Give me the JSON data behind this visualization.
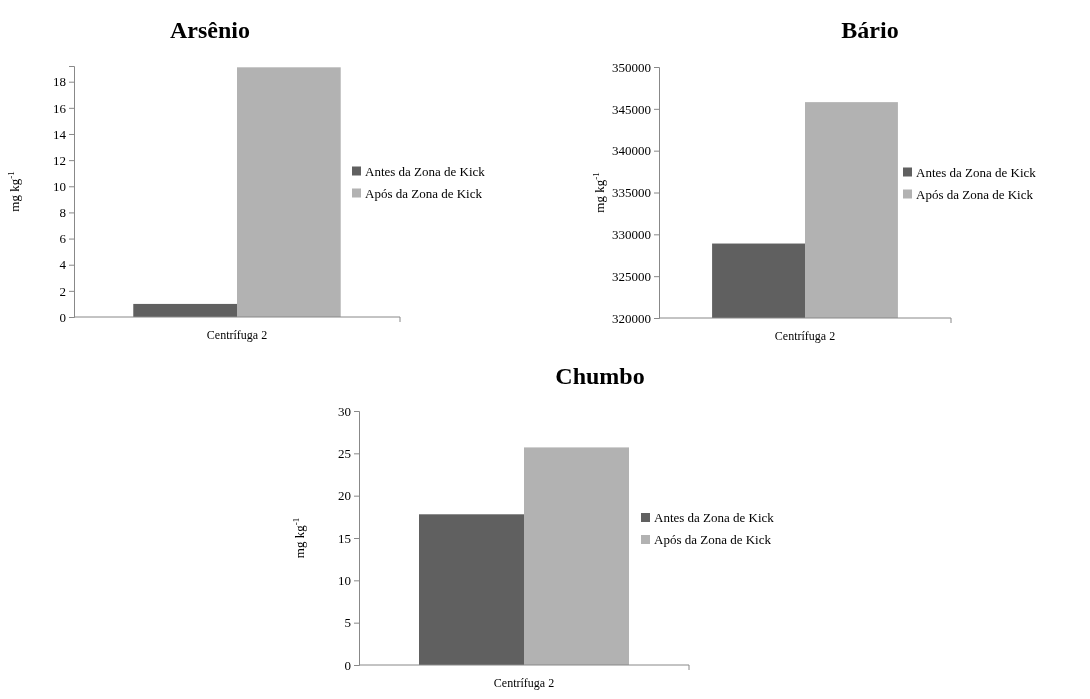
{
  "chart_data": [
    {
      "type": "bar",
      "title": "Arsênio",
      "ylabel": "mg kg$^{-1}$",
      "categories": [
        "Centrífuga 2"
      ],
      "ylim": [
        0,
        19.2
      ],
      "yticks": [
        0,
        2,
        4,
        6,
        8,
        10,
        12,
        14,
        16,
        18
      ],
      "legend": "right",
      "series": [
        {
          "name": "Antes da Zona de Kick",
          "color": "#606060",
          "values": [
            1.0
          ]
        },
        {
          "name": "Após da Zona de Kick",
          "color": "#b2b2b2",
          "values": [
            19.1
          ]
        }
      ]
    },
    {
      "type": "bar",
      "title": "Bário",
      "ylabel": "mg kg$^{-1}$",
      "categories": [
        "Centrífuga 2"
      ],
      "ylim": [
        320000,
        350000
      ],
      "yticks": [
        320000,
        325000,
        330000,
        335000,
        340000,
        345000,
        350000
      ],
      "legend": "right",
      "series": [
        {
          "name": "Antes da Zona de Kick",
          "color": "#606060",
          "values": [
            328900
          ]
        },
        {
          "name": "Após da Zona de Kick",
          "color": "#b2b2b2",
          "values": [
            345800
          ]
        }
      ]
    },
    {
      "type": "bar",
      "title": "Chumbo",
      "ylabel": "mg kg$^{-1}$",
      "categories": [
        "Centrífuga 2"
      ],
      "ylim": [
        0,
        30
      ],
      "yticks": [
        0,
        5,
        10,
        15,
        20,
        25,
        30
      ],
      "legend": "right",
      "series": [
        {
          "name": "Antes da Zona de Kick",
          "color": "#606060",
          "values": [
            17.8
          ]
        },
        {
          "name": "Após da Zona de Kick",
          "color": "#b2b2b2",
          "values": [
            25.7
          ]
        }
      ]
    }
  ]
}
